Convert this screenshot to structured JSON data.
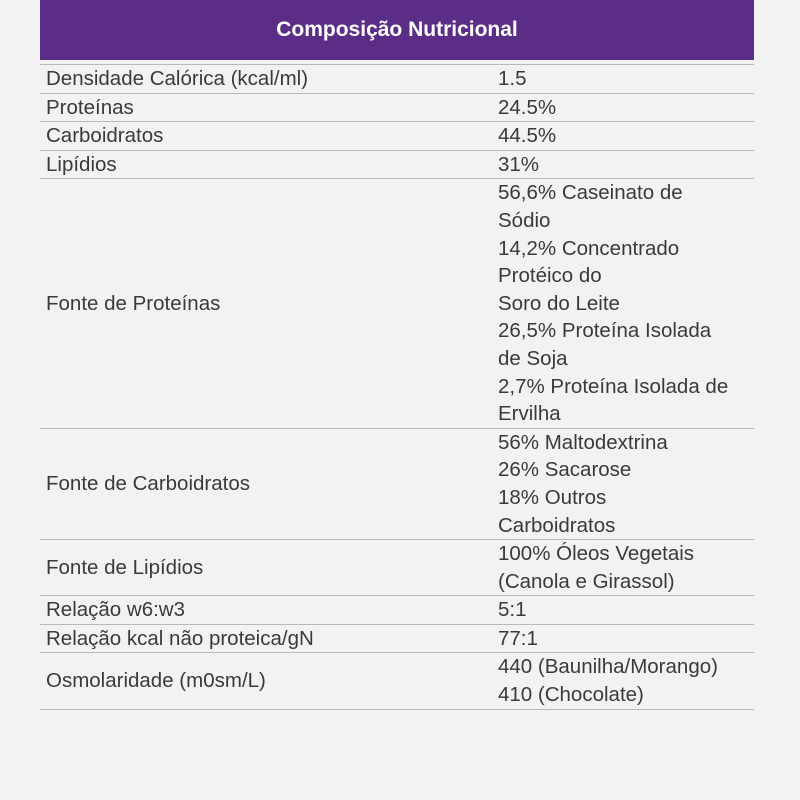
{
  "header": {
    "title": "Composição Nutricional"
  },
  "rows": [
    {
      "label": "Densidade Calórica (kcal/ml)",
      "lines": [
        "1.5"
      ]
    },
    {
      "label": "Proteínas",
      "lines": [
        "24.5%"
      ]
    },
    {
      "label": "Carboidratos",
      "lines": [
        "44.5%"
      ]
    },
    {
      "label": "Lipídios",
      "lines": [
        "31%"
      ]
    },
    {
      "label": "Fonte de Proteínas",
      "lines": [
        "56,6% Caseinato de",
        "Sódio",
        "14,2% Concentrado",
        "Protéico do",
        "Soro do Leite",
        "26,5% Proteína Isolada",
        "de Soja",
        "2,7% Proteína Isolada de",
        "Ervilha"
      ]
    },
    {
      "label": "Fonte de Carboidratos",
      "lines": [
        "56% Maltodextrina",
        "26% Sacarose",
        "18% Outros",
        "Carboidratos"
      ]
    },
    {
      "label": "Fonte de Lipídios",
      "lines": [
        "100% Óleos Vegetais",
        "(Canola e Girassol)"
      ]
    },
    {
      "label": "Relação w6:w3",
      "lines": [
        "5:1"
      ]
    },
    {
      "label": "Relação kcal não proteica/gN",
      "lines": [
        "77:1"
      ]
    },
    {
      "label": "Osmolaridade (m0sm/L)",
      "lines": [
        "440 (Baunilha/Morango)",
        "410 (Chocolate)"
      ]
    }
  ],
  "colors": {
    "header_bg": "#5b2d86",
    "header_text": "#ffffff",
    "page_bg": "#f3f2f2",
    "text": "#3a3a3a",
    "rule": "#b9b9b9"
  }
}
